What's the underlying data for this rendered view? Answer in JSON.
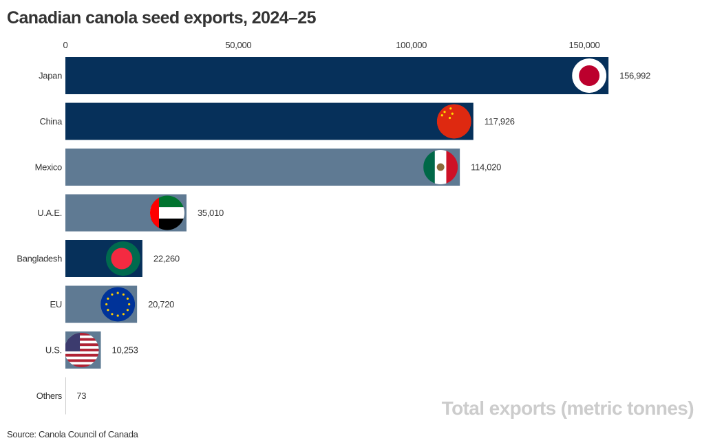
{
  "chart_data": {
    "type": "bar",
    "orientation": "horizontal",
    "title": "Canadian canola seed exports, 2024–25",
    "xlabel": "Total exports (metric tonnes)",
    "source": "Source: Canola Council of Canada",
    "xlim": [
      0,
      160000
    ],
    "xticks": [
      0,
      50000,
      100000,
      150000
    ],
    "xtick_labels": [
      "0",
      "50,000",
      "100,000",
      "150,000"
    ],
    "grid": false,
    "categories": [
      "Japan",
      "China",
      "Mexico",
      "U.A.E.",
      "Bangladesh",
      "EU",
      "U.S.",
      "Others"
    ],
    "values": [
      156992,
      117926,
      114020,
      35010,
      22260,
      20720,
      10253,
      73
    ],
    "value_labels": [
      "156,992",
      "117,926",
      "114,020",
      "35,010",
      "22,260",
      "20,720",
      "10,253",
      "73"
    ],
    "bar_colors": [
      "#06305a",
      "#06305a",
      "#5f7a93",
      "#5f7a93",
      "#06305a",
      "#5f7a93",
      "#5f7a93",
      "#cccccc"
    ],
    "flags": [
      "japan-flag",
      "china-flag",
      "mexico-flag",
      "uae-flag",
      "bangladesh-flag",
      "eu-flag",
      "us-flag",
      null
    ]
  }
}
